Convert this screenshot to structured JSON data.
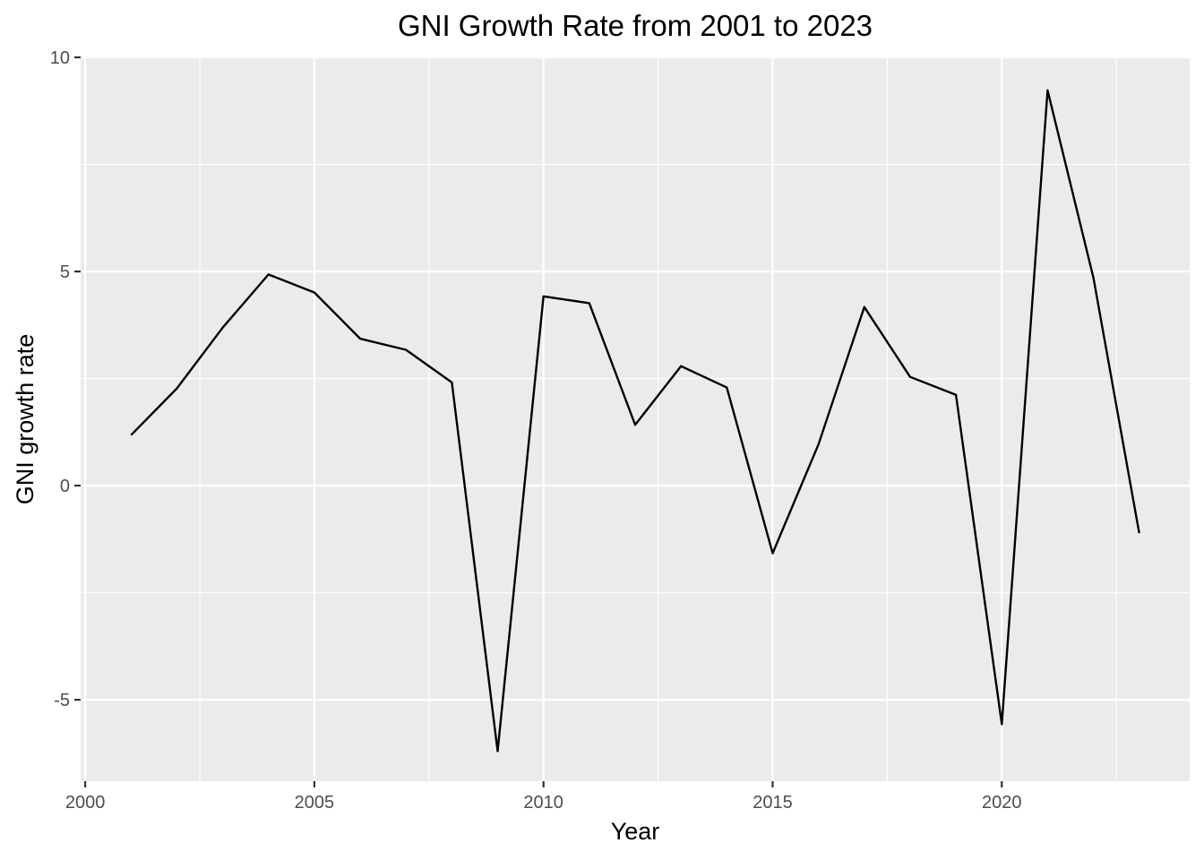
{
  "chart_data": {
    "type": "line",
    "title": "GNI Growth Rate from 2001 to 2023",
    "xlabel": "Year",
    "ylabel": "GNI growth rate",
    "xlim": [
      1999.9,
      2024.1
    ],
    "ylim": [
      -6.9,
      10
    ],
    "x_ticks": [
      2000,
      2005,
      2010,
      2015,
      2020
    ],
    "y_ticks": [
      -5,
      0,
      5,
      10
    ],
    "y_tick_labels": [
      "-5",
      "0",
      "5",
      "10"
    ],
    "grid": true,
    "legend": "none",
    "line_color": "#000000",
    "panel_color": "#ebebeb",
    "x": [
      2001,
      2002,
      2003,
      2004,
      2005,
      2006,
      2007,
      2008,
      2009,
      2010,
      2011,
      2012,
      2013,
      2014,
      2015,
      2016,
      2017,
      2018,
      2019,
      2020,
      2021,
      2022,
      2023
    ],
    "values": [
      1.18,
      2.27,
      3.69,
      4.93,
      4.51,
      3.43,
      3.17,
      2.41,
      -6.2,
      4.42,
      4.26,
      1.42,
      2.79,
      2.29,
      -1.58,
      0.96,
      4.17,
      2.54,
      2.12,
      -5.57,
      9.23,
      4.85,
      -1.11
    ]
  }
}
